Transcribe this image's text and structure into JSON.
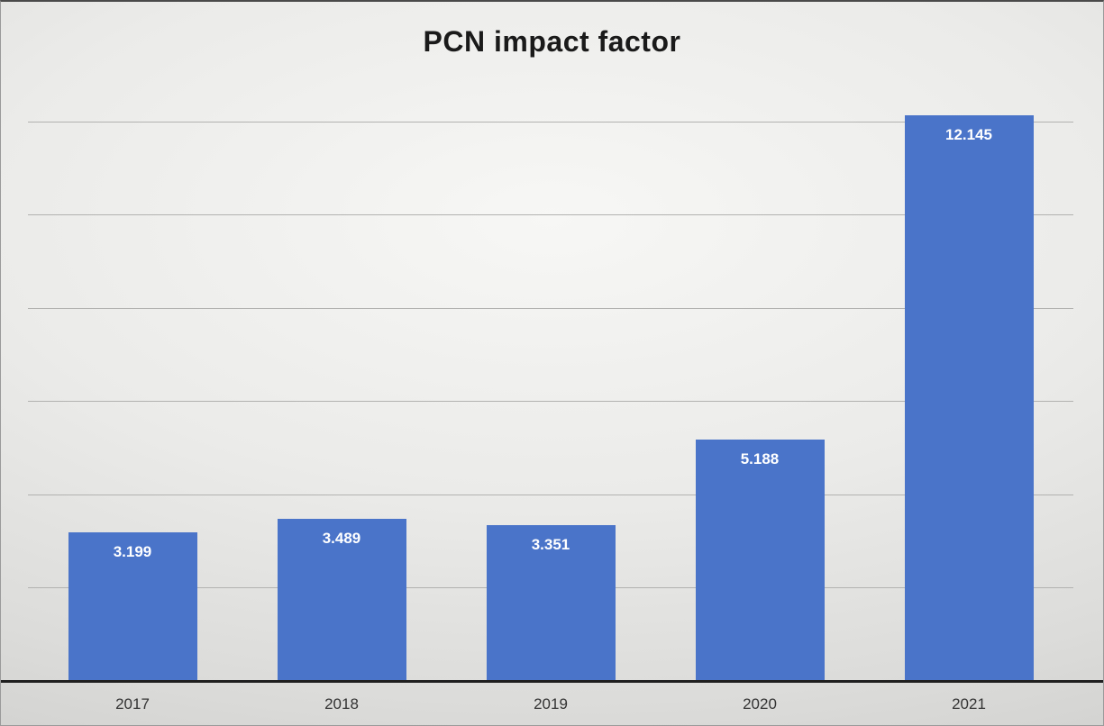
{
  "chart_data": {
    "type": "bar",
    "title": "PCN impact factor",
    "categories": [
      "2017",
      "2018",
      "2019",
      "2020",
      "2021"
    ],
    "values": [
      3.199,
      3.489,
      3.351,
      5.188,
      12.145
    ],
    "value_labels": [
      "3.199",
      "3.489",
      "3.351",
      "5.188",
      "12.145"
    ],
    "xlabel": "",
    "ylabel": "",
    "ylim": [
      0,
      12.84
    ],
    "gridline_values": [
      2,
      4,
      6,
      8,
      10,
      12
    ],
    "grid": true,
    "legend": false,
    "colors": {
      "bar": "#4a74c9",
      "value_label": "#ffffff",
      "gridline": "#b2b2b0",
      "baseline": "#1f1f1f",
      "title": "#1a1a1a",
      "tick_label": "#333333"
    }
  }
}
